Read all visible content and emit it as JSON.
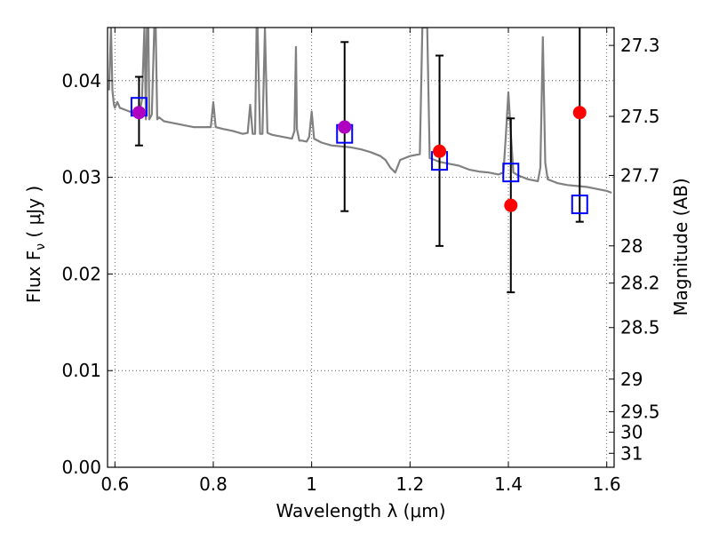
{
  "chart_data": {
    "type": "scatter",
    "title": "",
    "xlabel": "Wavelength  λ (μm)",
    "ylabel": "Flux  F",
    "ylabel_sub": "ν",
    "ylabel_unit": " ( μJy )",
    "y2label": "Magnitude (AB)",
    "xlim": [
      0.585,
      1.615
    ],
    "ylim": [
      0.0,
      0.0455
    ],
    "xticks": [
      0.6,
      0.8,
      1.0,
      1.2,
      1.4,
      1.6
    ],
    "xtick_labels": [
      "0.6",
      "0.8",
      "1",
      "1.2",
      "1.4",
      "1.6"
    ],
    "yticks": [
      0.0,
      0.01,
      0.02,
      0.03,
      0.04
    ],
    "ytick_labels": [
      "0.00",
      "0.01",
      "0.02",
      "0.03",
      "0.04"
    ],
    "y2ticks": [
      27.3,
      27.5,
      27.7,
      28,
      28.2,
      28.5,
      29,
      29.5,
      30,
      31
    ],
    "y2tick_labels": [
      "27.3",
      "27.5",
      "27.7",
      "28",
      "28.2",
      "28.5",
      "29",
      "29.5",
      "30",
      "31"
    ],
    "y2_scale": "AB magnitude, m = 23.9 - 2.5*log10(F)",
    "grid": true,
    "series": [
      {
        "kind": "line",
        "color": "#808080",
        "x": [
          0.588,
          0.592,
          0.595,
          0.598,
          0.6,
          0.605,
          0.61,
          0.62,
          0.63,
          0.64,
          0.65,
          0.655,
          0.66,
          0.663,
          0.665,
          0.668,
          0.67,
          0.675,
          0.68,
          0.683,
          0.686,
          0.69,
          0.7,
          0.72,
          0.74,
          0.76,
          0.78,
          0.795,
          0.8,
          0.805,
          0.82,
          0.84,
          0.86,
          0.87,
          0.875,
          0.88,
          0.885,
          0.888,
          0.89,
          0.895,
          0.9,
          0.905,
          0.91,
          0.92,
          0.94,
          0.96,
          0.965,
          0.968,
          0.97,
          0.975,
          0.98,
          0.99,
          0.995,
          1.0,
          1.005,
          1.02,
          1.04,
          1.06,
          1.08,
          1.1,
          1.12,
          1.14,
          1.15,
          1.16,
          1.17,
          1.18,
          1.2,
          1.22,
          1.225,
          1.23,
          1.235,
          1.24,
          1.25,
          1.26,
          1.28,
          1.3,
          1.32,
          1.34,
          1.36,
          1.38,
          1.39,
          1.395,
          1.4,
          1.405,
          1.41,
          1.42,
          1.44,
          1.46,
          1.465,
          1.47,
          1.475,
          1.48,
          1.49,
          1.5,
          1.52,
          1.54,
          1.56,
          1.58,
          1.6,
          1.61
        ],
        "y": [
          0.039,
          0.0455,
          0.039,
          0.0375,
          0.0372,
          0.0378,
          0.0372,
          0.037,
          0.0368,
          0.0367,
          0.0367,
          0.038,
          0.0455,
          0.036,
          0.0455,
          0.0455,
          0.036,
          0.0365,
          0.0455,
          0.0455,
          0.036,
          0.0362,
          0.0358,
          0.0356,
          0.0354,
          0.0352,
          0.0352,
          0.0352,
          0.0378,
          0.0352,
          0.035,
          0.0348,
          0.0345,
          0.0346,
          0.0375,
          0.0345,
          0.0345,
          0.0455,
          0.0455,
          0.0345,
          0.0345,
          0.0455,
          0.0346,
          0.0344,
          0.0342,
          0.034,
          0.0348,
          0.0435,
          0.035,
          0.0338,
          0.0338,
          0.0337,
          0.0342,
          0.0368,
          0.034,
          0.0336,
          0.0333,
          0.0332,
          0.0331,
          0.0329,
          0.0326,
          0.0322,
          0.0318,
          0.031,
          0.0305,
          0.0318,
          0.0322,
          0.0324,
          0.0455,
          0.0455,
          0.0455,
          0.032,
          0.0318,
          0.0316,
          0.0314,
          0.0312,
          0.0308,
          0.0306,
          0.0305,
          0.0303,
          0.0305,
          0.0345,
          0.0388,
          0.0345,
          0.0305,
          0.0302,
          0.0298,
          0.0296,
          0.031,
          0.0445,
          0.0315,
          0.0298,
          0.0296,
          0.0294,
          0.0292,
          0.0291,
          0.029,
          0.0288,
          0.0286,
          0.0284
        ]
      },
      {
        "kind": "points",
        "marker": "circle",
        "color": "#ff0000",
        "x": [
          0.649,
          1.067,
          1.26,
          1.405,
          1.545
        ],
        "y": [
          0.0367,
          0.0352,
          0.0327,
          0.0271,
          0.0367
        ],
        "yerr_low": [
          0.0333,
          0.0265,
          0.0229,
          0.0181,
          0.0254
        ],
        "yerr_high": [
          0.0404,
          0.044,
          0.0426,
          0.0361,
          0.0455
        ]
      },
      {
        "kind": "points",
        "marker": "open-square",
        "color": "#0000ff",
        "x": [
          0.649,
          1.067,
          1.26,
          1.405,
          1.545
        ],
        "y": [
          0.0373,
          0.0345,
          0.0317,
          0.0305,
          0.0272
        ]
      }
    ],
    "colors": {
      "axis": "#000000",
      "errorbar": "#000000",
      "model": "#808080",
      "overlap": "#b000c0"
    }
  }
}
